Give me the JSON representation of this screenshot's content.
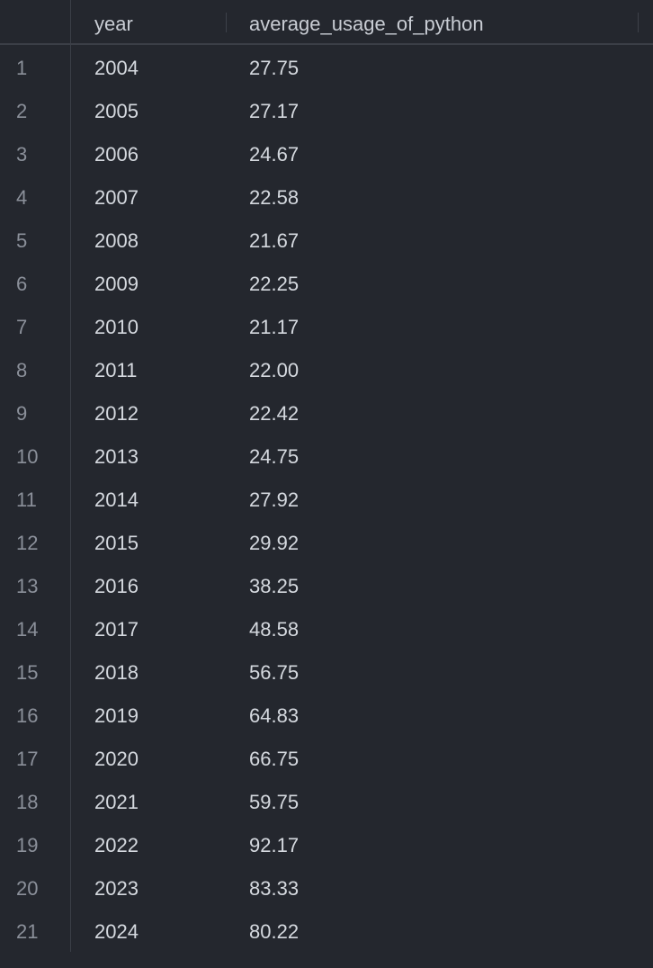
{
  "table": {
    "columns": [
      "year",
      "average_usage_of_python"
    ],
    "rows": [
      {
        "index": "1",
        "year": "2004",
        "average_usage_of_python": "27.75"
      },
      {
        "index": "2",
        "year": "2005",
        "average_usage_of_python": "27.17"
      },
      {
        "index": "3",
        "year": "2006",
        "average_usage_of_python": "24.67"
      },
      {
        "index": "4",
        "year": "2007",
        "average_usage_of_python": "22.58"
      },
      {
        "index": "5",
        "year": "2008",
        "average_usage_of_python": "21.67"
      },
      {
        "index": "6",
        "year": "2009",
        "average_usage_of_python": "22.25"
      },
      {
        "index": "7",
        "year": "2010",
        "average_usage_of_python": "21.17"
      },
      {
        "index": "8",
        "year": "2011",
        "average_usage_of_python": "22.00"
      },
      {
        "index": "9",
        "year": "2012",
        "average_usage_of_python": "22.42"
      },
      {
        "index": "10",
        "year": "2013",
        "average_usage_of_python": "24.75"
      },
      {
        "index": "11",
        "year": "2014",
        "average_usage_of_python": "27.92"
      },
      {
        "index": "12",
        "year": "2015",
        "average_usage_of_python": "29.92"
      },
      {
        "index": "13",
        "year": "2016",
        "average_usage_of_python": "38.25"
      },
      {
        "index": "14",
        "year": "2017",
        "average_usage_of_python": "48.58"
      },
      {
        "index": "15",
        "year": "2018",
        "average_usage_of_python": "56.75"
      },
      {
        "index": "16",
        "year": "2019",
        "average_usage_of_python": "64.83"
      },
      {
        "index": "17",
        "year": "2020",
        "average_usage_of_python": "66.75"
      },
      {
        "index": "18",
        "year": "2021",
        "average_usage_of_python": "59.75"
      },
      {
        "index": "19",
        "year": "2022",
        "average_usage_of_python": "92.17"
      },
      {
        "index": "20",
        "year": "2023",
        "average_usage_of_python": "83.33"
      },
      {
        "index": "21",
        "year": "2024",
        "average_usage_of_python": "80.22"
      }
    ]
  }
}
